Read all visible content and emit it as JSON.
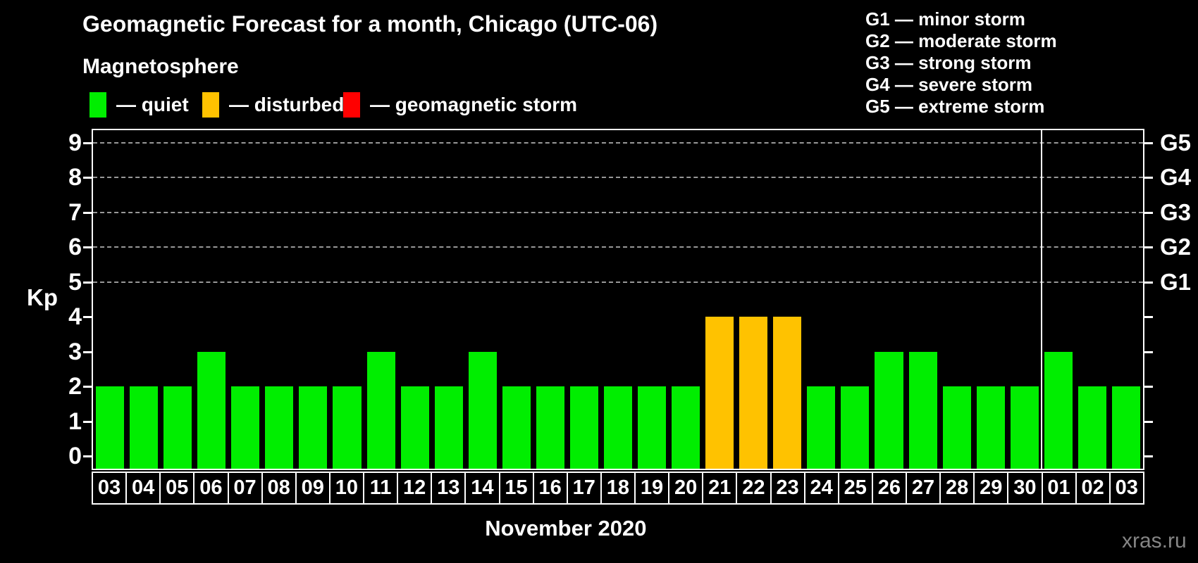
{
  "header": {
    "title": "Geomagnetic Forecast for a month, Chicago (UTC-06)",
    "subtitle": "Magnetosphere"
  },
  "legend": {
    "items": [
      {
        "label": "— quiet",
        "status": "quiet",
        "color": "#00ee00"
      },
      {
        "label": "— disturbed",
        "status": "disturbed",
        "color": "#ffc200"
      },
      {
        "label": "— geomagnetic storm",
        "status": "storm",
        "color": "#ff0000"
      }
    ]
  },
  "storm_scale": [
    "G1 — minor storm",
    "G2 — moderate storm",
    "G3 — strong storm",
    "G4 — severe storm",
    "G5 — extreme storm"
  ],
  "axes": {
    "y_label": "Kp",
    "y_ticks": [
      0,
      1,
      2,
      3,
      4,
      5,
      6,
      7,
      8,
      9
    ],
    "right_axis": [
      {
        "code": "G1",
        "kp": 5
      },
      {
        "code": "G2",
        "kp": 6
      },
      {
        "code": "G3",
        "kp": 7
      },
      {
        "code": "G4",
        "kp": 8
      },
      {
        "code": "G5",
        "kp": 9
      }
    ],
    "x_caption": "November 2020"
  },
  "watermark": "xras.ru",
  "chart_data": {
    "type": "bar",
    "title": "Geomagnetic Forecast for a month, Chicago (UTC-06)",
    "xlabel": "November 2020",
    "ylabel": "Kp",
    "ylim": [
      0,
      9
    ],
    "grid": "dashed horizontal at Kp 5-9 only",
    "legend_position": "top",
    "gridlines_kp": [
      5,
      6,
      7,
      8,
      9
    ],
    "categories": [
      "03",
      "04",
      "05",
      "06",
      "07",
      "08",
      "09",
      "10",
      "11",
      "12",
      "13",
      "14",
      "15",
      "16",
      "17",
      "18",
      "19",
      "20",
      "21",
      "22",
      "23",
      "24",
      "25",
      "26",
      "27",
      "28",
      "29",
      "30",
      "01",
      "02",
      "03"
    ],
    "values": [
      2,
      2,
      2,
      3,
      2,
      2,
      2,
      2,
      3,
      2,
      2,
      3,
      2,
      2,
      2,
      2,
      2,
      2,
      4,
      4,
      4,
      2,
      2,
      3,
      3,
      2,
      2,
      2,
      3,
      2,
      2
    ],
    "statuses": [
      "quiet",
      "quiet",
      "quiet",
      "quiet",
      "quiet",
      "quiet",
      "quiet",
      "quiet",
      "quiet",
      "quiet",
      "quiet",
      "quiet",
      "quiet",
      "quiet",
      "quiet",
      "quiet",
      "quiet",
      "quiet",
      "disturbed",
      "disturbed",
      "disturbed",
      "quiet",
      "quiet",
      "quiet",
      "quiet",
      "quiet",
      "quiet",
      "quiet",
      "quiet",
      "quiet",
      "quiet"
    ],
    "month_boundary_index": 28,
    "status_colors": {
      "quiet": "#00ee00",
      "disturbed": "#ffc200",
      "storm": "#ff0000"
    }
  }
}
